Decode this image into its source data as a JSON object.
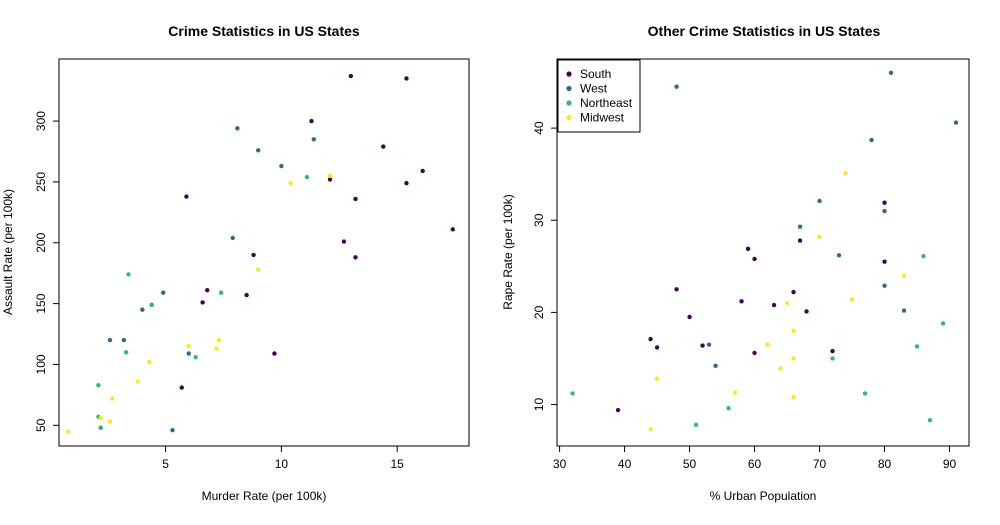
{
  "chart_data": [
    {
      "type": "scatter",
      "title": "Crime Statistics in US States",
      "xlabel": "Murder Rate (per 100k)",
      "ylabel": "Assault Rate (per 100k)",
      "xlim": [
        0.4,
        18.1
      ],
      "ylim": [
        33,
        351
      ],
      "xticks": [
        "5",
        "10",
        "15"
      ],
      "yticks": [
        "50",
        "100",
        "150",
        "200",
        "250",
        "300"
      ],
      "xtick_values": [
        5,
        10,
        15
      ],
      "ytick_values": [
        50,
        100,
        150,
        200,
        250,
        300
      ],
      "grid": false,
      "series": [
        {
          "color": "#440154",
          "points": [
            [
              13.2,
              236
            ],
            [
              17.4,
              211
            ],
            [
              8.8,
              190
            ],
            [
              15.4,
              249
            ],
            [
              5.9,
              238
            ],
            [
              15.4,
              335
            ],
            [
              8.5,
              157
            ],
            [
              13.0,
              337
            ],
            [
              6.6,
              151
            ],
            [
              11.3,
              300
            ],
            [
              9.7,
              109
            ],
            [
              16.1,
              259
            ],
            [
              14.4,
              279
            ],
            [
              12.7,
              201
            ],
            [
              13.2,
              188
            ],
            [
              5.7,
              81
            ],
            [
              6.8,
              161
            ],
            [
              12.1,
              252
            ]
          ]
        },
        {
          "color": "#31688e",
          "points": [
            [
              9.0,
              276
            ],
            [
              8.1,
              294
            ],
            [
              7.9,
              204
            ],
            [
              5.3,
              46
            ],
            [
              2.6,
              120
            ],
            [
              3.2,
              120
            ],
            [
              11.4,
              285
            ],
            [
              10.0,
              263
            ],
            [
              6.0,
              109
            ],
            [
              4.9,
              159
            ],
            [
              4.0,
              145
            ],
            [
              4.4,
              149
            ],
            [
              2.2,
              48
            ]
          ]
        },
        {
          "color": "#35b779",
          "points": [
            [
              3.3,
              110
            ],
            [
              2.1,
              83
            ],
            [
              3.4,
              174
            ],
            [
              4.4,
              149
            ],
            [
              2.1,
              57
            ],
            [
              7.4,
              159
            ],
            [
              11.1,
              254
            ],
            [
              6.3,
              106
            ],
            [
              2.2,
              48
            ]
          ]
        },
        {
          "color": "#fde725",
          "points": [
            [
              10.4,
              249
            ],
            [
              7.2,
              113
            ],
            [
              2.2,
              56
            ],
            [
              6.0,
              115
            ],
            [
              0.8,
              45
            ],
            [
              2.6,
              53
            ],
            [
              7.3,
              120
            ],
            [
              2.7,
              72
            ],
            [
              9.0,
              178
            ],
            [
              3.8,
              86
            ],
            [
              4.3,
              102
            ],
            [
              12.1,
              255
            ]
          ]
        }
      ]
    },
    {
      "type": "scatter",
      "title": "Other Crime Statistics in US States",
      "xlabel": "% Urban Population",
      "ylabel": "Rape Rate (per 100k)",
      "xlim": [
        29.6,
        93.0
      ],
      "ylim": [
        5.5,
        47.5
      ],
      "xticks": [
        "30",
        "40",
        "50",
        "60",
        "70",
        "80",
        "90"
      ],
      "yticks": [
        "10",
        "20",
        "30",
        "40"
      ],
      "xtick_values": [
        30,
        40,
        50,
        60,
        70,
        80,
        90
      ],
      "ytick_values": [
        10,
        20,
        30,
        40
      ],
      "grid": false,
      "legend": {
        "placement": "top-left",
        "entries": [
          {
            "label": "South",
            "color": "#440154"
          },
          {
            "label": "West",
            "color": "#31688e"
          },
          {
            "label": "Northeast",
            "color": "#35b779"
          },
          {
            "label": "Midwest",
            "color": "#fde725"
          }
        ]
      },
      "series": [
        {
          "color": "#440154",
          "points": [
            [
              39,
              9.4
            ],
            [
              44,
              17.1
            ],
            [
              45,
              16.2
            ],
            [
              48,
              22.5
            ],
            [
              50,
              19.5
            ],
            [
              52,
              16.4
            ],
            [
              58,
              21.2
            ],
            [
              59,
              26.9
            ],
            [
              60,
              25.8
            ],
            [
              60,
              15.6
            ],
            [
              63,
              20.8
            ],
            [
              66,
              22.2
            ],
            [
              67,
              27.8
            ],
            [
              68,
              20.1
            ],
            [
              72,
              15.8
            ],
            [
              80,
              31.9
            ],
            [
              80,
              25.5
            ]
          ]
        },
        {
          "color": "#31688e",
          "points": [
            [
              48,
              44.5
            ],
            [
              53,
              16.5
            ],
            [
              54,
              14.2
            ],
            [
              67,
              29.3
            ],
            [
              70,
              32.1
            ],
            [
              73,
              26.2
            ],
            [
              78,
              38.7
            ],
            [
              80,
              22.9
            ],
            [
              80,
              31.0
            ],
            [
              81,
              46.0
            ],
            [
              83,
              20.2
            ],
            [
              91,
              40.6
            ]
          ]
        },
        {
          "color": "#35b779",
          "points": [
            [
              32,
              11.2
            ],
            [
              51,
              7.8
            ],
            [
              56,
              9.6
            ],
            [
              72,
              15.0
            ],
            [
              77,
              11.2
            ],
            [
              85,
              16.3
            ],
            [
              86,
              26.1
            ],
            [
              87,
              8.3
            ],
            [
              89,
              18.8
            ]
          ]
        },
        {
          "color": "#fde725",
          "points": [
            [
              44,
              7.3
            ],
            [
              45,
              12.8
            ],
            [
              57,
              11.3
            ],
            [
              62,
              16.5
            ],
            [
              64,
              13.9
            ],
            [
              65,
              21.0
            ],
            [
              66,
              18.0
            ],
            [
              66,
              15.0
            ],
            [
              66,
              10.8
            ],
            [
              70,
              28.2
            ],
            [
              74,
              35.1
            ],
            [
              75,
              21.4
            ],
            [
              83,
              24.0
            ]
          ]
        }
      ]
    }
  ]
}
